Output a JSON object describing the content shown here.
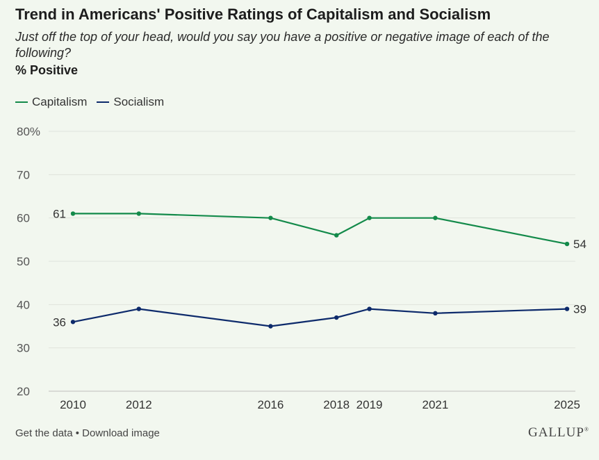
{
  "header": {
    "title": "Trend in Americans' Positive Ratings of Capitalism and Socialism",
    "subtitle": "Just off the top of your head, would you say you have a positive or negative image of each of the following?",
    "unit_label": "% Positive"
  },
  "footer": {
    "get_data": "Get the data",
    "separator": " • ",
    "download": "Download image",
    "brand": "GALLUP",
    "brand_mark": "®"
  },
  "chart_data": {
    "type": "line",
    "title": "Trend in Americans' Positive Ratings of Capitalism and Socialism",
    "xlabel": "",
    "ylabel": "% Positive",
    "x": [
      2010,
      2012,
      2016,
      2018,
      2019,
      2021,
      2025
    ],
    "ylim": [
      20,
      80
    ],
    "yticks": [
      20,
      30,
      40,
      50,
      60,
      70,
      80
    ],
    "ytick_labels": [
      "20",
      "30",
      "40",
      "50",
      "60",
      "70",
      "80%"
    ],
    "grid": true,
    "legend": "top-left",
    "series": [
      {
        "name": "Capitalism",
        "color": "#138a4a",
        "values": [
          61,
          61,
          60,
          56,
          60,
          60,
          54
        ]
      },
      {
        "name": "Socialism",
        "color": "#0d2a6b",
        "values": [
          36,
          39,
          35,
          37,
          39,
          38,
          39
        ]
      }
    ]
  }
}
